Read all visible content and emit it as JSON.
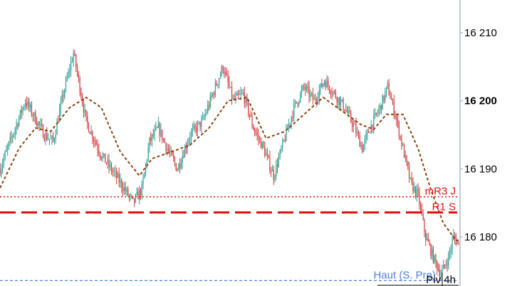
{
  "chart_data": {
    "type": "candlestick",
    "ylim": [
      16172.8,
      16214.8
    ],
    "y_ticks": [
      {
        "value": 16210,
        "label": "16 210",
        "bold": false
      },
      {
        "value": 16200,
        "label": "16 200",
        "bold": true
      },
      {
        "value": 16190,
        "label": "16 190",
        "bold": false
      },
      {
        "value": 16180,
        "label": "16 180",
        "bold": false
      }
    ],
    "colors": {
      "up": "#2aa198",
      "down": "#d63a3a",
      "moving_average": "#8b4513",
      "resistance": "#e01010",
      "support": "#4f7fe0",
      "axis": "#9aa7bd"
    },
    "moving_average_keypoints": [
      [
        0,
        16187.2
      ],
      [
        15,
        16193.0
      ],
      [
        28,
        16196.0
      ],
      [
        40,
        16195.5
      ],
      [
        55,
        16199.0
      ],
      [
        68,
        16200.5
      ],
      [
        80,
        16199.0
      ],
      [
        95,
        16192.5
      ],
      [
        110,
        16189.0
      ],
      [
        120,
        16191.5
      ],
      [
        135,
        16192.5
      ],
      [
        150,
        16193.5
      ],
      [
        165,
        16196.0
      ],
      [
        180,
        16200.0
      ],
      [
        195,
        16200.5
      ],
      [
        210,
        16194.5
      ],
      [
        225,
        16195.5
      ],
      [
        240,
        16198.0
      ],
      [
        255,
        16200.5
      ],
      [
        270,
        16198.5
      ],
      [
        285,
        16196.5
      ],
      [
        295,
        16195.8
      ],
      [
        305,
        16198.0
      ],
      [
        318,
        16198.0
      ],
      [
        330,
        16193.0
      ],
      [
        340,
        16187.0
      ],
      [
        350,
        16182.0
      ],
      [
        360,
        16179.5
      ]
    ],
    "price_keypoints": [
      [
        0,
        16190.0
      ],
      [
        20,
        16200.0
      ],
      [
        35,
        16195.0
      ],
      [
        42,
        16194.0
      ],
      [
        50,
        16201.0
      ],
      [
        58,
        16207.0
      ],
      [
        68,
        16197.0
      ],
      [
        80,
        16192.0
      ],
      [
        95,
        16188.0
      ],
      [
        105,
        16185.0
      ],
      [
        112,
        16187.0
      ],
      [
        118,
        16194.0
      ],
      [
        125,
        16196.0
      ],
      [
        132,
        16193.0
      ],
      [
        140,
        16190.0
      ],
      [
        150,
        16195.0
      ],
      [
        160,
        16197.0
      ],
      [
        168,
        16201.0
      ],
      [
        176,
        16205.0
      ],
      [
        184,
        16200.0
      ],
      [
        192,
        16201.0
      ],
      [
        200,
        16196.0
      ],
      [
        208,
        16193.0
      ],
      [
        216,
        16189.0
      ],
      [
        224,
        16194.0
      ],
      [
        232,
        16199.0
      ],
      [
        240,
        16202.0
      ],
      [
        248,
        16200.0
      ],
      [
        256,
        16203.0
      ],
      [
        264,
        16201.0
      ],
      [
        272,
        16199.0
      ],
      [
        280,
        16196.0
      ],
      [
        286,
        16193.0
      ],
      [
        292,
        16196.0
      ],
      [
        300,
        16199.0
      ],
      [
        306,
        16202.0
      ],
      [
        312,
        16198.0
      ],
      [
        318,
        16193.0
      ],
      [
        324,
        16188.0
      ],
      [
        330,
        16186.0
      ],
      [
        336,
        16180.0
      ],
      [
        342,
        16177.0
      ],
      [
        348,
        16174.5
      ],
      [
        354,
        16177.0
      ],
      [
        358,
        16180.0
      ],
      [
        362,
        16179.0
      ]
    ],
    "levels": [
      {
        "name": "mR3 J",
        "value": 16185.9,
        "style": "dotted",
        "color": "#e01010",
        "width": 1.5
      },
      {
        "name": "R1 S",
        "value": 16183.6,
        "style": "dashed",
        "color": "#e01010",
        "width": 3
      },
      {
        "name": "Haut (S. Pre)",
        "value": 16173.6,
        "style": "dashed",
        "color": "#4f7fe0",
        "width": 1.2
      },
      {
        "name": "Piv 4h",
        "value": 16172.9,
        "style": "solid",
        "color": "#000000",
        "width": 1
      }
    ]
  }
}
